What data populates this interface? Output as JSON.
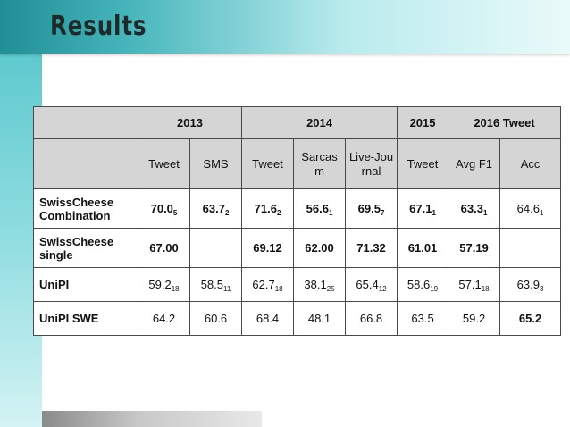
{
  "slide": {
    "title": "Results"
  },
  "table": {
    "years": [
      "2013",
      "2014",
      "2015",
      "2016 Tweet"
    ],
    "subheaders": [
      "Tweet",
      "SMS",
      "Tweet",
      "Sarcasm",
      "Live-Journal",
      "Tweet",
      "Avg F1",
      "Acc"
    ],
    "rows": [
      {
        "name": "SwissCheese Combination",
        "cells": [
          {
            "v": "70.0",
            "s": "5",
            "bold": true
          },
          {
            "v": "63.7",
            "s": "2",
            "bold": true
          },
          {
            "v": "71.6",
            "s": "2",
            "bold": true
          },
          {
            "v": "56.6",
            "s": "1",
            "bold": true
          },
          {
            "v": "69.5",
            "s": "7",
            "bold": true
          },
          {
            "v": "67.1",
            "s": "1",
            "bold": true
          },
          {
            "v": "63.3",
            "s": "1",
            "bold": true
          },
          {
            "v": "64.6",
            "s": "1",
            "bold": false
          }
        ]
      },
      {
        "name": "SwissCheese single",
        "cells": [
          {
            "v": "67.00",
            "s": "",
            "bold": true
          },
          {
            "v": "",
            "s": "",
            "bold": false
          },
          {
            "v": "69.12",
            "s": "",
            "bold": true
          },
          {
            "v": "62.00",
            "s": "",
            "bold": true
          },
          {
            "v": "71.32",
            "s": "",
            "bold": true
          },
          {
            "v": "61.01",
            "s": "",
            "bold": true
          },
          {
            "v": "57.19",
            "s": "",
            "bold": true
          },
          {
            "v": "",
            "s": "",
            "bold": false
          }
        ]
      },
      {
        "name": "UniPI",
        "cells": [
          {
            "v": "59.2",
            "s": "18",
            "bold": false
          },
          {
            "v": "58.5",
            "s": "11",
            "bold": false
          },
          {
            "v": "62.7",
            "s": "18",
            "bold": false
          },
          {
            "v": "38.1",
            "s": "25",
            "bold": false
          },
          {
            "v": "65.4",
            "s": "12",
            "bold": false
          },
          {
            "v": "58.6",
            "s": "19",
            "bold": false
          },
          {
            "v": "57.1",
            "s": "18",
            "bold": false
          },
          {
            "v": "63.9",
            "s": "3",
            "bold": false
          }
        ]
      },
      {
        "name": "UniPI SWE",
        "cells": [
          {
            "v": "64.2",
            "s": "",
            "bold": false
          },
          {
            "v": "60.6",
            "s": "",
            "bold": false
          },
          {
            "v": "68.4",
            "s": "",
            "bold": false
          },
          {
            "v": "48.1",
            "s": "",
            "bold": false
          },
          {
            "v": "66.8",
            "s": "",
            "bold": false
          },
          {
            "v": "63.5",
            "s": "",
            "bold": false
          },
          {
            "v": "59.2",
            "s": "",
            "bold": false
          },
          {
            "v": "65.2",
            "s": "",
            "bold": true
          }
        ]
      }
    ]
  }
}
